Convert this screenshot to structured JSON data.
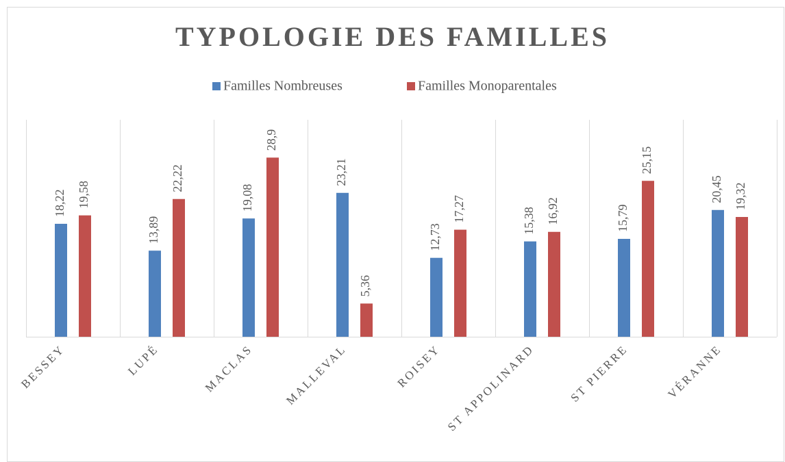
{
  "chart_data": {
    "type": "bar",
    "title": "TYPOLOGIE DES FAMILLES",
    "categories": [
      "BESSEY",
      "LUPÉ",
      "MACLAS",
      "MALLEVAL",
      "ROISEY",
      "ST APPOLINARD",
      "ST PIERRE",
      "VÉRANNE"
    ],
    "series": [
      {
        "name": "Familles Nombreuses",
        "color": "#4f81bd",
        "values": [
          18.22,
          13.89,
          19.08,
          23.21,
          12.73,
          15.38,
          15.79,
          20.45
        ],
        "value_labels": [
          "18,22",
          "13,89",
          "19,08",
          "23,21",
          "12,73",
          "15,38",
          "15,79",
          "20,45"
        ]
      },
      {
        "name": "Familles Monoparentales",
        "color": "#c0504d",
        "values": [
          19.58,
          22.22,
          28.9,
          5.36,
          17.27,
          16.92,
          25.15,
          19.32
        ],
        "value_labels": [
          "19,58",
          "22,22",
          "28,9",
          "5,36",
          "17,27",
          "16,92",
          "25,15",
          "19,32"
        ]
      }
    ],
    "ylim": [
      0,
      35
    ],
    "legend": "top"
  }
}
